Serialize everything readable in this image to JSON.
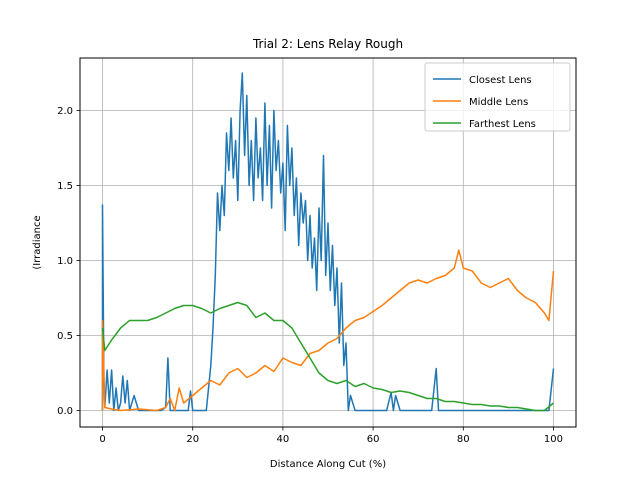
{
  "chart_data": {
    "type": "line",
    "title": "Trial 2: Lens Relay Rough",
    "xlabel": "Distance Along Cut (%)",
    "ylabel": "(Irradiance",
    "xlim": [
      -5,
      105
    ],
    "ylim": [
      -0.11,
      2.35
    ],
    "xticks": [
      0,
      20,
      40,
      60,
      80,
      100
    ],
    "yticks": [
      0.0,
      0.5,
      1.0,
      1.5,
      2.0
    ],
    "xtick_labels": [
      "0",
      "20",
      "40",
      "60",
      "80",
      "100"
    ],
    "ytick_labels": [
      "0.0",
      "0.5",
      "1.0",
      "1.5",
      "2.0"
    ],
    "grid": true,
    "legend_position": "top-right",
    "series": [
      {
        "name": "Closest Lens",
        "color": "#1f77b4",
        "points": [
          [
            0,
            0.0
          ],
          [
            0,
            1.37
          ],
          [
            0.3,
            0.2
          ],
          [
            0.5,
            0.02
          ],
          [
            1,
            0.27
          ],
          [
            1.5,
            0.05
          ],
          [
            2,
            0.27
          ],
          [
            2.5,
            0.0
          ],
          [
            3,
            0.15
          ],
          [
            3.5,
            0.0
          ],
          [
            4,
            0.05
          ],
          [
            4.5,
            0.23
          ],
          [
            5,
            0.05
          ],
          [
            5.5,
            0.2
          ],
          [
            6,
            0.0
          ],
          [
            7,
            0.1
          ],
          [
            8,
            0.0
          ],
          [
            13,
            0.0
          ],
          [
            14,
            0.02
          ],
          [
            14.5,
            0.35
          ],
          [
            15,
            0.0
          ],
          [
            19,
            0.0
          ],
          [
            19.5,
            0.13
          ],
          [
            20,
            0.0
          ],
          [
            23,
            0.0
          ],
          [
            24,
            0.3
          ],
          [
            24.5,
            0.55
          ],
          [
            25,
            0.9
          ],
          [
            25.5,
            1.45
          ],
          [
            26,
            1.2
          ],
          [
            26.5,
            1.5
          ],
          [
            27,
            1.3
          ],
          [
            27.5,
            1.85
          ],
          [
            28,
            1.6
          ],
          [
            28.5,
            1.95
          ],
          [
            29,
            1.55
          ],
          [
            29.5,
            1.8
          ],
          [
            30,
            1.4
          ],
          [
            30.5,
            2.0
          ],
          [
            31,
            2.25
          ],
          [
            31.5,
            1.7
          ],
          [
            32,
            2.1
          ],
          [
            32.5,
            1.5
          ],
          [
            33,
            1.8
          ],
          [
            33.5,
            1.4
          ],
          [
            34,
            1.95
          ],
          [
            34.5,
            1.55
          ],
          [
            35,
            1.75
          ],
          [
            35.5,
            1.4
          ],
          [
            36,
            2.05
          ],
          [
            36.5,
            1.5
          ],
          [
            37,
            1.9
          ],
          [
            37.5,
            1.35
          ],
          [
            38,
            2.0
          ],
          [
            38.5,
            1.6
          ],
          [
            39,
            1.8
          ],
          [
            39.5,
            1.45
          ],
          [
            40,
            1.65
          ],
          [
            40.5,
            1.2
          ],
          [
            41,
            1.9
          ],
          [
            41.5,
            1.5
          ],
          [
            42,
            1.75
          ],
          [
            42.5,
            1.3
          ],
          [
            43,
            1.55
          ],
          [
            43.5,
            1.1
          ],
          [
            44,
            1.45
          ],
          [
            44.5,
            1.25
          ],
          [
            45,
            1.4
          ],
          [
            45.5,
            1.0
          ],
          [
            46,
            1.3
          ],
          [
            46.5,
            0.95
          ],
          [
            47,
            1.15
          ],
          [
            47.5,
            0.8
          ],
          [
            48,
            1.35
          ],
          [
            48.5,
            1.0
          ],
          [
            49,
            1.7
          ],
          [
            49.5,
            0.9
          ],
          [
            50,
            1.25
          ],
          [
            50.5,
            0.8
          ],
          [
            51,
            1.1
          ],
          [
            51.5,
            0.7
          ],
          [
            52,
            0.95
          ],
          [
            52.5,
            0.45
          ],
          [
            53,
            0.85
          ],
          [
            53.5,
            0.3
          ],
          [
            54,
            0.45
          ],
          [
            54.5,
            0.0
          ],
          [
            55,
            0.1
          ],
          [
            56,
            0.0
          ],
          [
            62,
            0.0
          ],
          [
            63,
            0.0
          ],
          [
            64,
            0.12
          ],
          [
            64.5,
            0.0
          ],
          [
            65,
            0.1
          ],
          [
            66,
            0.0
          ],
          [
            73,
            0.0
          ],
          [
            74,
            0.28
          ],
          [
            74.5,
            0.0
          ],
          [
            99,
            0.0
          ],
          [
            100,
            0.28
          ]
        ]
      },
      {
        "name": "Middle Lens",
        "color": "#ff7f0e",
        "points": [
          [
            0,
            0.0
          ],
          [
            0,
            0.6
          ],
          [
            0.5,
            0.02
          ],
          [
            2,
            0.01
          ],
          [
            4,
            0.0
          ],
          [
            8,
            0.01
          ],
          [
            12,
            0.0
          ],
          [
            14,
            0.02
          ],
          [
            15,
            0.08
          ],
          [
            16,
            0.0
          ],
          [
            17,
            0.15
          ],
          [
            18,
            0.05
          ],
          [
            20,
            0.1
          ],
          [
            22,
            0.15
          ],
          [
            24,
            0.2
          ],
          [
            26,
            0.17
          ],
          [
            28,
            0.25
          ],
          [
            30,
            0.28
          ],
          [
            32,
            0.22
          ],
          [
            34,
            0.25
          ],
          [
            36,
            0.3
          ],
          [
            38,
            0.26
          ],
          [
            40,
            0.35
          ],
          [
            42,
            0.32
          ],
          [
            44,
            0.3
          ],
          [
            46,
            0.38
          ],
          [
            48,
            0.4
          ],
          [
            50,
            0.45
          ],
          [
            52,
            0.48
          ],
          [
            54,
            0.55
          ],
          [
            56,
            0.6
          ],
          [
            58,
            0.62
          ],
          [
            60,
            0.66
          ],
          [
            62,
            0.7
          ],
          [
            64,
            0.75
          ],
          [
            66,
            0.8
          ],
          [
            68,
            0.85
          ],
          [
            70,
            0.87
          ],
          [
            72,
            0.85
          ],
          [
            74,
            0.88
          ],
          [
            76,
            0.9
          ],
          [
            78,
            0.95
          ],
          [
            79,
            1.07
          ],
          [
            80,
            0.95
          ],
          [
            82,
            0.93
          ],
          [
            84,
            0.85
          ],
          [
            86,
            0.82
          ],
          [
            88,
            0.85
          ],
          [
            90,
            0.88
          ],
          [
            92,
            0.8
          ],
          [
            94,
            0.75
          ],
          [
            96,
            0.72
          ],
          [
            98,
            0.65
          ],
          [
            99,
            0.6
          ],
          [
            100,
            0.93
          ]
        ]
      },
      {
        "name": "Farthest Lens",
        "color": "#2ca02c",
        "points": [
          [
            0,
            0.55
          ],
          [
            0.5,
            0.4
          ],
          [
            2,
            0.47
          ],
          [
            4,
            0.55
          ],
          [
            6,
            0.6
          ],
          [
            8,
            0.6
          ],
          [
            10,
            0.6
          ],
          [
            12,
            0.62
          ],
          [
            14,
            0.65
          ],
          [
            16,
            0.68
          ],
          [
            18,
            0.7
          ],
          [
            20,
            0.7
          ],
          [
            22,
            0.68
          ],
          [
            24,
            0.65
          ],
          [
            26,
            0.68
          ],
          [
            28,
            0.7
          ],
          [
            30,
            0.72
          ],
          [
            32,
            0.7
          ],
          [
            34,
            0.62
          ],
          [
            36,
            0.65
          ],
          [
            38,
            0.6
          ],
          [
            40,
            0.6
          ],
          [
            42,
            0.55
          ],
          [
            44,
            0.45
          ],
          [
            46,
            0.35
          ],
          [
            48,
            0.25
          ],
          [
            50,
            0.2
          ],
          [
            52,
            0.18
          ],
          [
            54,
            0.2
          ],
          [
            56,
            0.16
          ],
          [
            58,
            0.18
          ],
          [
            60,
            0.15
          ],
          [
            62,
            0.14
          ],
          [
            64,
            0.12
          ],
          [
            66,
            0.13
          ],
          [
            68,
            0.12
          ],
          [
            70,
            0.1
          ],
          [
            72,
            0.08
          ],
          [
            74,
            0.08
          ],
          [
            76,
            0.06
          ],
          [
            78,
            0.06
          ],
          [
            80,
            0.05
          ],
          [
            82,
            0.04
          ],
          [
            84,
            0.04
          ],
          [
            86,
            0.03
          ],
          [
            88,
            0.03
          ],
          [
            90,
            0.02
          ],
          [
            92,
            0.02
          ],
          [
            94,
            0.01
          ],
          [
            96,
            0.0
          ],
          [
            98,
            0.0
          ],
          [
            100,
            0.05
          ]
        ]
      }
    ]
  }
}
